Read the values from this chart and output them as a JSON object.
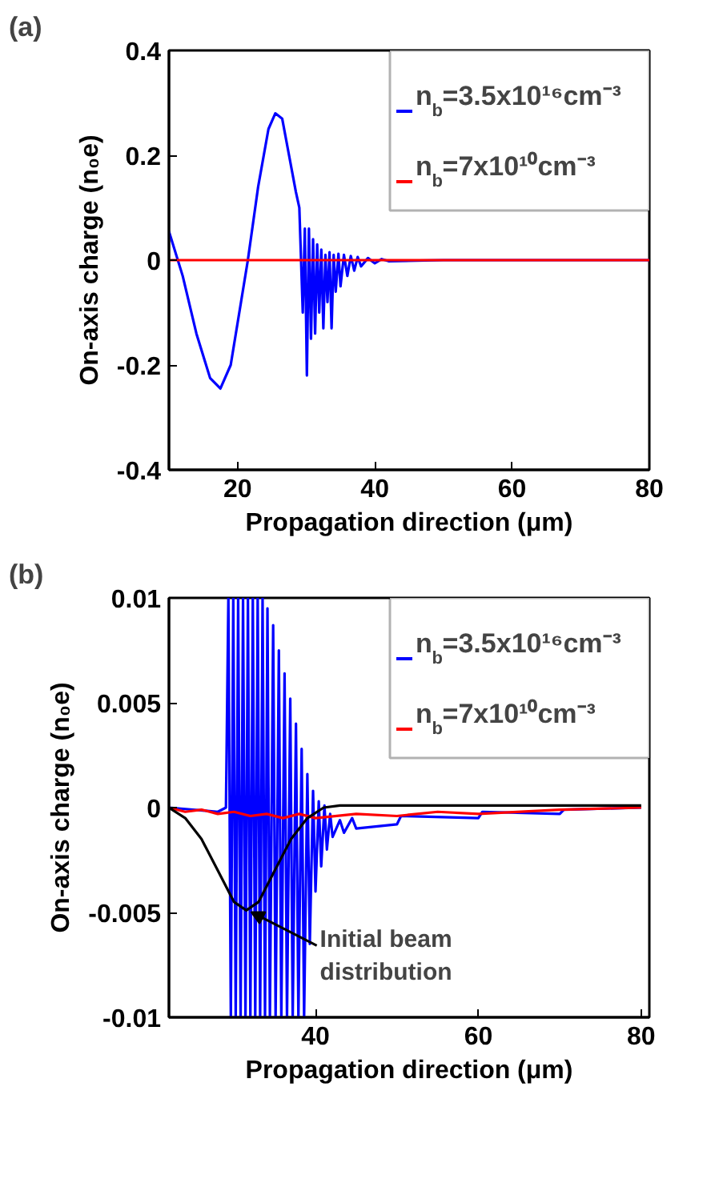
{
  "chart_data": [
    {
      "type": "line",
      "title": "(a)",
      "xlabel": "Propagation direction (μm)",
      "ylabel": "On-axis charge (n₀e)",
      "xlim": [
        10,
        80
      ],
      "ylim": [
        -0.4,
        0.4
      ],
      "xticks": [
        20,
        40,
        60,
        80
      ],
      "yticks": [
        -0.4,
        -0.2,
        0,
        0.2,
        0.4
      ],
      "grid": false,
      "legend": "top right",
      "series": [
        {
          "name": "n$_{b}$=3.5x10¹⁶cm⁻³",
          "color": "#0000ff",
          "x": [
            10,
            12,
            14,
            16,
            17.5,
            19,
            20.5,
            21.5,
            23,
            24.5,
            25.5,
            26.5,
            27.5,
            28.5,
            29,
            29.5,
            29.8,
            30.1,
            30.4,
            30.7,
            31,
            31.3,
            31.6,
            31.9,
            32.2,
            32.5,
            32.8,
            33.1,
            33.4,
            33.7,
            34,
            34.3,
            34.7,
            35,
            35.5,
            36,
            36.5,
            37,
            37.5,
            38,
            39,
            40,
            41,
            42,
            50,
            80
          ],
          "values": [
            0.055,
            -0.03,
            -0.14,
            -0.225,
            -0.245,
            -0.2,
            -0.08,
            0,
            0.14,
            0.25,
            0.28,
            0.27,
            0.2,
            0.13,
            0.1,
            -0.1,
            0.06,
            -0.22,
            0.06,
            -0.15,
            0.04,
            -0.14,
            0.03,
            -0.1,
            0.02,
            -0.13,
            0.01,
            -0.08,
            0.015,
            -0.13,
            0.01,
            -0.06,
            0.012,
            -0.05,
            0.01,
            -0.03,
            0.008,
            -0.02,
            0.006,
            -0.012,
            0.004,
            -0.006,
            0.002,
            -0.002,
            0,
            0
          ]
        },
        {
          "name": "n$_{b}$=7x10¹⁰cm⁻³",
          "color": "#ff0000",
          "x": [
            10,
            80
          ],
          "values": [
            0,
            0
          ]
        }
      ]
    },
    {
      "type": "line",
      "title": "(b)",
      "xlabel": "Propagation direction (μm)",
      "ylabel": "On-axis charge (n₀e)",
      "xlim": [
        22,
        81
      ],
      "ylim": [
        -0.01,
        0.01
      ],
      "xticks": [
        40,
        60,
        80
      ],
      "yticks": [
        -0.01,
        -0.005,
        0,
        0.005,
        0.01
      ],
      "grid": false,
      "legend": "top right",
      "series": [
        {
          "name": "n$_{b}$=3.5x10¹⁶cm⁻³",
          "color": "#0000ff",
          "x": [
            22,
            28,
            29,
            29.3,
            29.6,
            29.9,
            30.2,
            30.5,
            30.8,
            31.1,
            31.4,
            31.7,
            32.0,
            32.3,
            32.6,
            32.9,
            33.2,
            33.5,
            33.8,
            34.1,
            34.4,
            34.8,
            35.1,
            35.5,
            35.8,
            36.2,
            36.5,
            36.9,
            37.2,
            37.6,
            37.9,
            38.3,
            38.6,
            39.0,
            39.3,
            39.7,
            40.0,
            40.4,
            40.7,
            41.1,
            41.4,
            41.8,
            42.1,
            43,
            43.5,
            44.5,
            45,
            50,
            50.5,
            60,
            60.5,
            70,
            70.5,
            80
          ],
          "values": [
            0,
            -0.0002,
            0,
            0.01,
            -0.01,
            0.01,
            -0.01,
            0.01,
            -0.01,
            0.01,
            -0.01,
            0.01,
            -0.01,
            0.01,
            -0.01,
            0.01,
            -0.01,
            0.01,
            -0.01,
            0.0095,
            -0.01,
            0.0087,
            -0.01,
            0.0075,
            -0.01,
            0.0064,
            -0.01,
            0.0052,
            -0.01,
            0.004,
            -0.01,
            0.0028,
            -0.01,
            0.0016,
            -0.0065,
            0.0008,
            -0.004,
            0.0003,
            -0.0028,
            0.0001,
            -0.002,
            -0.0003,
            -0.0014,
            -0.0006,
            -0.0012,
            -0.0005,
            -0.001,
            -0.0008,
            -0.0004,
            -0.0005,
            -0.0002,
            -0.0003,
            -0.0001,
            0
          ]
        },
        {
          "name": "n$_{b}$=7x10¹⁰cm⁻³",
          "color": "#ff0000",
          "x": [
            22,
            24,
            26,
            28,
            30,
            32,
            34,
            36,
            38,
            40,
            45,
            50,
            55,
            60,
            70,
            80
          ],
          "values": [
            0,
            -0.0002,
            -0.0001,
            -0.0003,
            -0.0002,
            -0.0004,
            -0.0003,
            -0.0005,
            -0.0003,
            -0.0005,
            -0.0003,
            -0.0004,
            -0.0002,
            -0.0003,
            -0.0001,
            0
          ]
        },
        {
          "color": "#000000",
          "x": [
            22,
            24,
            26,
            28,
            30,
            31.5,
            33,
            35,
            37,
            39,
            41,
            43,
            50,
            60,
            80
          ],
          "values": [
            0,
            -0.0005,
            -0.0015,
            -0.003,
            -0.0045,
            -0.0049,
            -0.0045,
            -0.003,
            -0.0015,
            -0.0005,
            0,
            0.0001,
            0.0001,
            0.0001,
            0.0001
          ]
        }
      ],
      "annotations": [
        {
          "text": "Initial beam\ndistribution",
          "x": 31.5,
          "y": -0.0049
        }
      ]
    }
  ]
}
